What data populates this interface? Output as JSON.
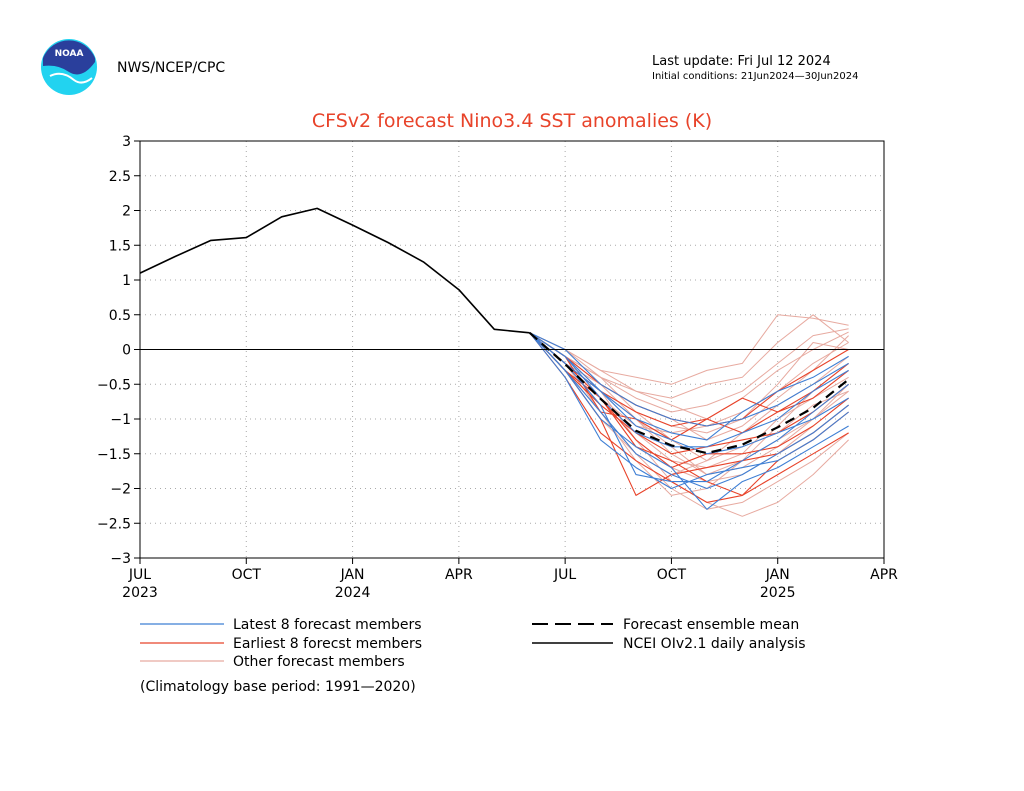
{
  "header": {
    "agency": "NWS/NCEP/CPC",
    "logo_text": "NOAA",
    "last_update": "Last update: Fri Jul 12 2024",
    "initial_conditions": "Initial conditions: 21Jun2024—30Jun2024"
  },
  "colors": {
    "title": "#e8432a",
    "latest": "#3f7fd4",
    "earliest": "#e8432a",
    "other": "#e7aaa0",
    "analysis": "#000000",
    "mean": "#000000",
    "logo_outer": "#22d3f0",
    "logo_inner": "#2a3f9c"
  },
  "chart_data": {
    "type": "line",
    "title": "CFSv2 forecast Nino3.4 SST anomalies (K)",
    "xlim": [
      0,
      21
    ],
    "ylim": [
      -3,
      3
    ],
    "yticks": [
      3,
      2.5,
      2,
      1.5,
      1,
      0.5,
      0,
      -0.5,
      -1,
      -1.5,
      -2,
      -2.5,
      -3
    ],
    "ytick_labels": [
      "3",
      "2.5",
      "2",
      "1.5",
      "1",
      "0.5",
      "0",
      "−0.5",
      "−1",
      "−1.5",
      "−2",
      "−2.5",
      "−3"
    ],
    "xticks": [
      {
        "pos": 0,
        "label": "JUL",
        "year": "2023"
      },
      {
        "pos": 3,
        "label": "OCT",
        "year": ""
      },
      {
        "pos": 6,
        "label": "JAN",
        "year": "2024"
      },
      {
        "pos": 9,
        "label": "APR",
        "year": ""
      },
      {
        "pos": 12,
        "label": "JUL",
        "year": ""
      },
      {
        "pos": 15,
        "label": "OCT",
        "year": ""
      },
      {
        "pos": 18,
        "label": "JAN",
        "year": "2025"
      },
      {
        "pos": 21,
        "label": "APR",
        "year": ""
      }
    ],
    "grid": true,
    "zero_line": true,
    "analysis": {
      "name": "NCEI OIv2.1 daily analysis",
      "x": [
        0,
        1,
        2,
        3,
        4,
        5,
        6,
        7,
        8,
        9,
        10,
        11
      ],
      "y": [
        1.1,
        1.34,
        1.57,
        1.61,
        1.91,
        2.03,
        1.79,
        1.54,
        1.26,
        0.86,
        0.29,
        0.24
      ]
    },
    "ensemble_mean": {
      "name": "Forecast ensemble mean",
      "x": [
        11,
        12,
        13,
        14,
        15,
        16,
        17,
        18,
        19,
        20
      ],
      "y": [
        0.24,
        -0.21,
        -0.71,
        -1.17,
        -1.38,
        -1.49,
        -1.37,
        -1.12,
        -0.84,
        -0.43
      ]
    },
    "members_x": [
      11,
      12,
      13,
      14,
      15,
      16,
      17,
      18,
      19,
      20
    ],
    "latest_members": [
      [
        0.24,
        -0.1,
        -0.6,
        -1.1,
        -1.3,
        -1.5,
        -1.4,
        -1.2,
        -1.0,
        -0.7
      ],
      [
        0.24,
        -0.3,
        -0.9,
        -1.5,
        -1.8,
        -2.0,
        -1.8,
        -1.5,
        -1.2,
        -0.8
      ],
      [
        0.24,
        -0.2,
        -0.8,
        -1.8,
        -1.9,
        -1.9,
        -1.6,
        -1.3,
        -0.9,
        -0.5
      ],
      [
        0.24,
        0.0,
        -0.5,
        -0.8,
        -1.0,
        -1.1,
        -1.0,
        -0.8,
        -0.5,
        -0.2
      ],
      [
        0.24,
        -0.3,
        -1.0,
        -1.4,
        -1.7,
        -2.3,
        -1.9,
        -1.7,
        -1.4,
        -1.1
      ],
      [
        0.24,
        -0.1,
        -0.7,
        -1.2,
        -1.4,
        -1.4,
        -1.2,
        -1.0,
        -0.6,
        -0.3
      ],
      [
        0.24,
        -0.2,
        -0.6,
        -1.0,
        -1.2,
        -1.3,
        -0.9,
        -0.6,
        -0.4,
        -0.1
      ],
      [
        0.24,
        -0.4,
        -1.3,
        -1.7,
        -2.0,
        -1.8,
        -1.7,
        -1.6,
        -1.3,
        -0.9
      ]
    ],
    "earliest_members": [
      [
        0.24,
        -0.3,
        -1.0,
        -2.1,
        -1.8,
        -1.7,
        -1.6,
        -1.5,
        -1.2,
        -0.8
      ],
      [
        0.24,
        -0.2,
        -0.6,
        -0.9,
        -1.1,
        -1.0,
        -0.7,
        -0.9,
        -0.7,
        -0.3
      ],
      [
        0.24,
        -0.4,
        -1.2,
        -1.6,
        -1.9,
        -2.2,
        -2.1,
        -1.8,
        -1.5,
        -1.2
      ],
      [
        0.24,
        -0.1,
        -0.5,
        -0.8,
        -1.0,
        -1.1,
        -1.0,
        -0.6,
        -0.3,
        0.0
      ],
      [
        0.24,
        -0.3,
        -0.8,
        -1.2,
        -1.5,
        -1.4,
        -1.3,
        -1.2,
        -0.9,
        -0.5
      ],
      [
        0.24,
        -0.2,
        -0.7,
        -1.4,
        -1.6,
        -1.9,
        -2.1,
        -1.6,
        -1.3,
        -0.9
      ],
      [
        0.24,
        -0.1,
        -0.9,
        -1.0,
        -1.3,
        -1.0,
        -1.2,
        -0.9,
        -0.6,
        -0.2
      ],
      [
        0.24,
        -0.3,
        -0.7,
        -1.3,
        -1.7,
        -1.5,
        -1.5,
        -1.4,
        -1.1,
        -0.7
      ]
    ],
    "other_members": [
      [
        0.24,
        0.0,
        -0.3,
        -0.4,
        -0.5,
        -0.3,
        -0.2,
        0.5,
        0.45,
        0.35
      ],
      [
        0.24,
        -0.1,
        -0.4,
        -0.6,
        -0.7,
        -0.5,
        -0.4,
        0.1,
        0.5,
        0.1
      ],
      [
        0.24,
        -0.2,
        -0.6,
        -1.3,
        -1.9,
        -2.2,
        -2.4,
        -2.2,
        -1.8,
        -1.3
      ],
      [
        0.24,
        -0.1,
        -0.5,
        -1.0,
        -1.4,
        -1.8,
        -1.7,
        -1.4,
        -1.0,
        -0.6
      ],
      [
        0.24,
        -0.3,
        -0.9,
        -1.5,
        -2.0,
        -2.3,
        -2.2,
        -1.9,
        -1.6,
        -1.2
      ],
      [
        0.24,
        0.0,
        -0.4,
        -0.7,
        -0.9,
        -0.8,
        -0.6,
        -0.2,
        0.2,
        0.3
      ],
      [
        0.24,
        -0.2,
        -0.7,
        -1.1,
        -1.2,
        -1.1,
        -0.9,
        -0.6,
        -0.2,
        0.1
      ],
      [
        0.24,
        -0.1,
        -0.6,
        -0.9,
        -1.3,
        -1.6,
        -1.2,
        -0.8,
        -0.5,
        -0.1
      ],
      [
        0.24,
        -0.3,
        -0.8,
        -1.2,
        -1.6,
        -1.7,
        -1.5,
        -1.0,
        -0.7,
        -0.4
      ],
      [
        0.24,
        -0.2,
        -0.5,
        -0.8,
        -1.0,
        -1.3,
        -1.1,
        -0.7,
        -0.3,
        0.2
      ],
      [
        0.24,
        -0.1,
        -0.7,
        -1.4,
        -1.7,
        -1.9,
        -1.8,
        -1.5,
        -1.1,
        -0.7
      ],
      [
        0.24,
        -0.2,
        -0.9,
        -1.6,
        -2.1,
        -2.0,
        -1.6,
        -1.3,
        -1.0,
        -0.5
      ],
      [
        0.24,
        0.0,
        -0.3,
        -0.6,
        -0.8,
        -1.0,
        -0.7,
        -0.3,
        0.0,
        0.25
      ],
      [
        0.24,
        -0.3,
        -1.0,
        -1.5,
        -1.8,
        -1.6,
        -1.4,
        -1.2,
        -0.8,
        -0.6
      ],
      [
        0.24,
        -0.2,
        -0.6,
        -1.0,
        -1.5,
        -1.8,
        -1.6,
        -1.1,
        -0.6,
        -0.2
      ],
      [
        0.24,
        -0.1,
        -0.4,
        -0.9,
        -1.1,
        -1.2,
        -1.0,
        -0.5,
        0.1,
        0.0
      ]
    ]
  },
  "legend": {
    "latest": "Latest 8 forecast members",
    "earliest": "Earliest 8 forecst members",
    "other": "Other forecast members",
    "mean": "Forecast ensemble mean",
    "analysis": "NCEI OIv2.1 daily analysis"
  },
  "footnote": "(Climatology base period: 1991—2020)"
}
